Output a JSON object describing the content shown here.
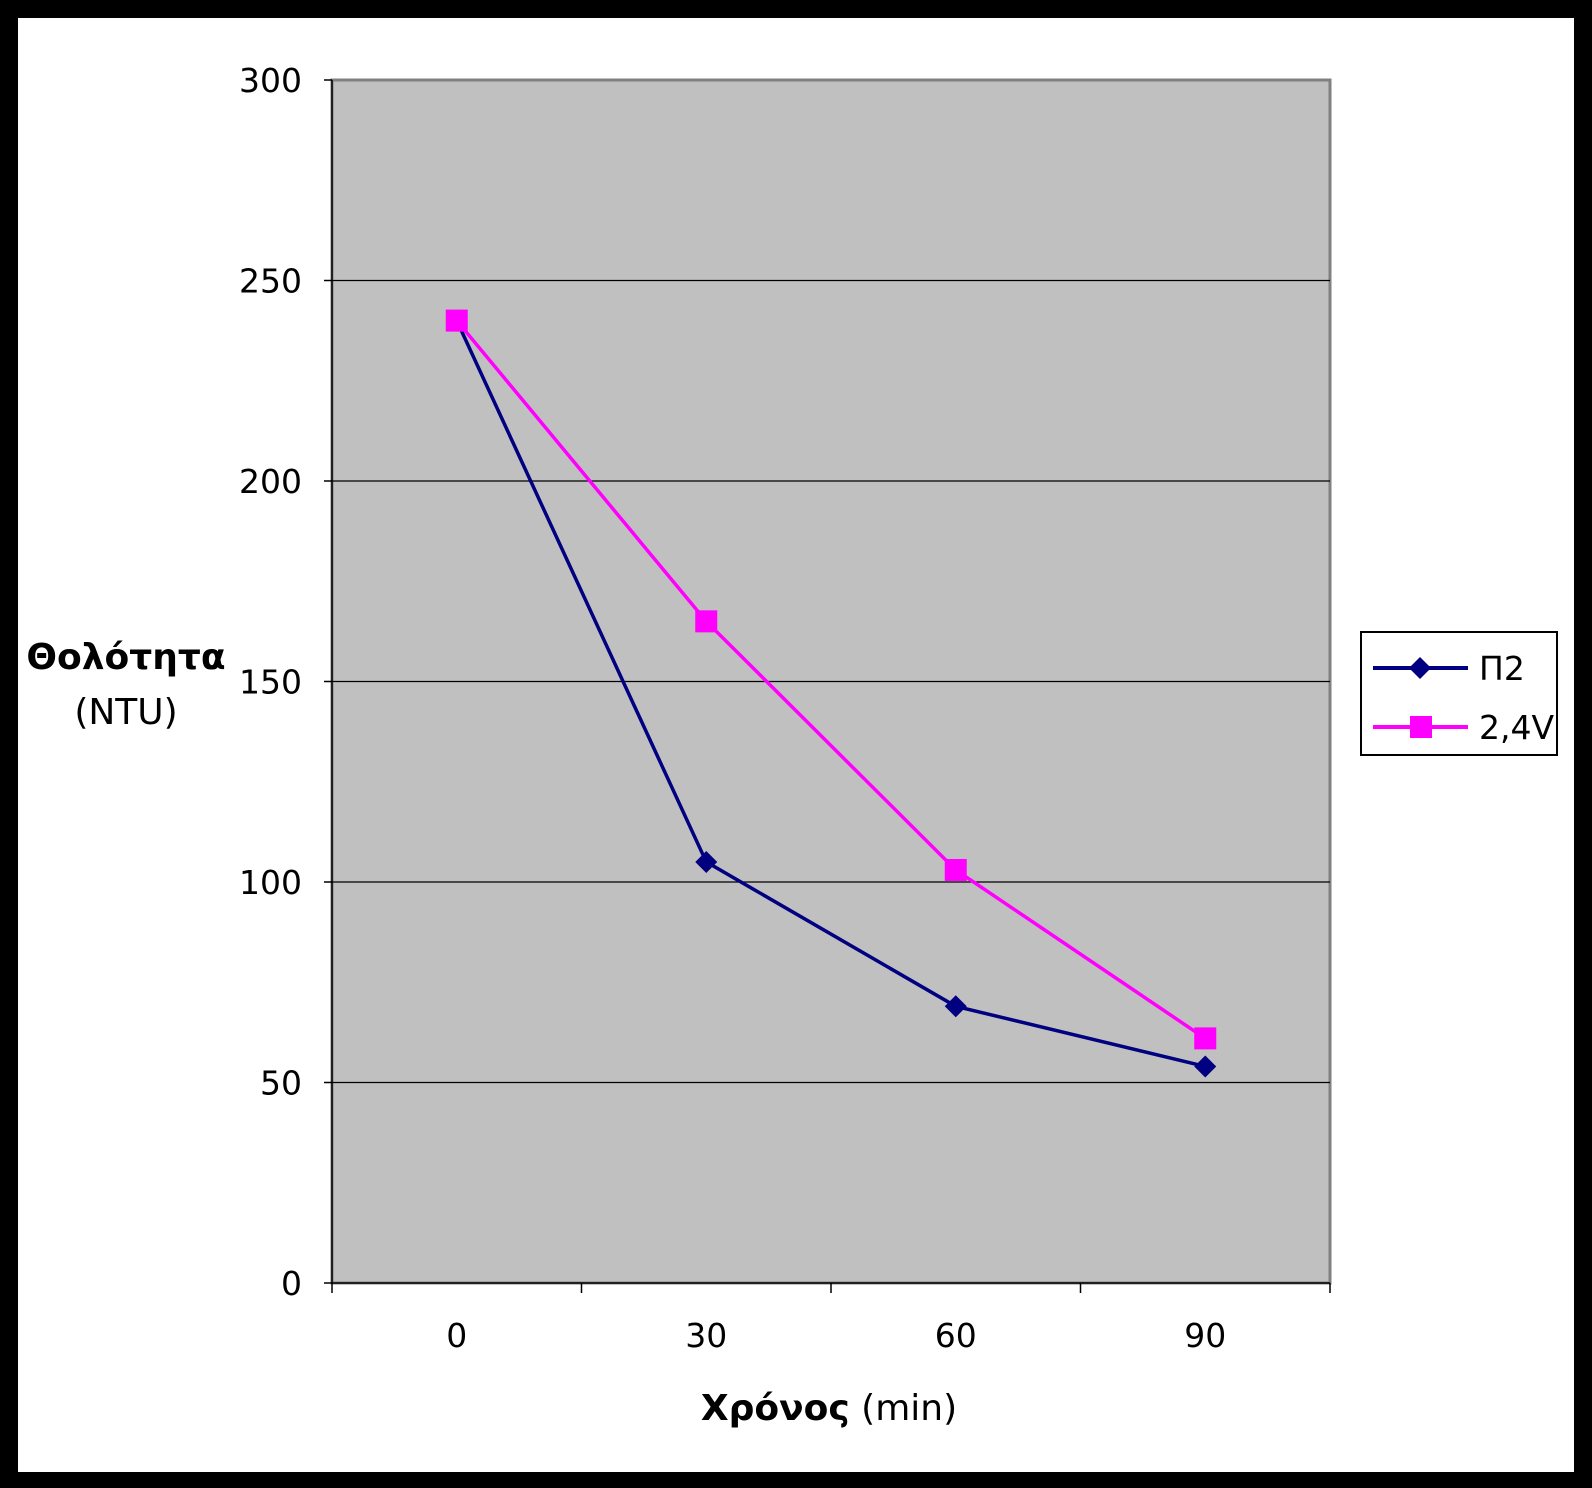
{
  "chart_data": {
    "type": "line",
    "title": "",
    "xlabel": {
      "bold": "Χρόνος",
      "normal": " (min)"
    },
    "ylabel": {
      "line1": "Θολότητα",
      "line2": "(NTU)"
    },
    "categories": [
      "0",
      "30",
      "60",
      "90"
    ],
    "x": [
      0,
      30,
      60,
      90
    ],
    "ylim": [
      0,
      300
    ],
    "yticks": [
      0,
      50,
      100,
      150,
      200,
      250,
      300
    ],
    "grid": true,
    "legend_position": "right",
    "plot_background": "#c0c0c0",
    "series": [
      {
        "name": "Π2",
        "values": [
          240,
          105,
          69,
          54
        ],
        "color": "#000080",
        "marker": "diamond"
      },
      {
        "name": "2,4V",
        "values": [
          240,
          165,
          103,
          61
        ],
        "color": "#ff00ff",
        "marker": "square"
      }
    ]
  }
}
